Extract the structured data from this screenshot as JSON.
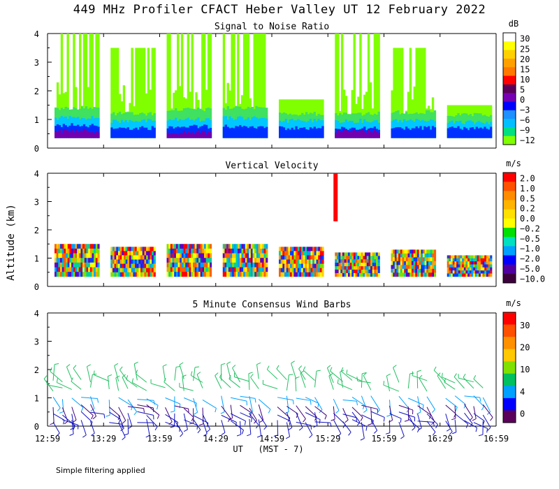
{
  "title": "449 MHz Profiler CFACT Heber Valley UT 12 February 2022",
  "footer_note": "Simple filtering applied",
  "y_axis_label": "Altitude (km)",
  "x_axis_label": "UT   (MST - 7)",
  "chart_data": [
    {
      "type": "heatmap",
      "title": "Signal to Noise Ratio",
      "xlabel": "UT   (MST - 7)",
      "ylabel": "Altitude (km)",
      "xlim": [
        "12:59",
        "16:59"
      ],
      "ylim": [
        0,
        4
      ],
      "x_ticks": [
        "12:59",
        "13:29",
        "13:59",
        "14:29",
        "14:59",
        "15:29",
        "15:59",
        "16:29",
        "16:59"
      ],
      "y_ticks": [
        "0",
        "1",
        "2",
        "3",
        "4"
      ],
      "colorbar": {
        "unit": "dB",
        "labels": [
          "30",
          "25",
          "20",
          "15",
          "10",
          "5",
          "0",
          "−3",
          "−6",
          "−9",
          "−12"
        ],
        "colors": [
          "#ffffff",
          "#ffff00",
          "#ffd000",
          "#ffa000",
          "#ff7800",
          "#ff0000",
          "#5a005a",
          "#7800b4",
          "#0000ff",
          "#1e90ff",
          "#00bfff",
          "#00e080",
          "#80ff00"
        ]
      },
      "scans": [
        {
          "start": "12:59",
          "end": "13:23",
          "layers": [
            {
              "top_km": 4.0,
              "class": "-12"
            },
            {
              "top_km": 1.4,
              "class": "-9"
            },
            {
              "top_km": 1.05,
              "class": "-6"
            },
            {
              "top_km": 0.8,
              "class": "-3"
            },
            {
              "top_km": 0.6,
              "class": "0"
            }
          ]
        },
        {
          "start": "13:29",
          "end": "13:53",
          "layers": [
            {
              "top_km": 3.5,
              "class": "-12"
            },
            {
              "top_km": 1.2,
              "class": "-9"
            },
            {
              "top_km": 0.95,
              "class": "-6"
            },
            {
              "top_km": 0.7,
              "class": "-3"
            }
          ]
        },
        {
          "start": "13:59",
          "end": "14:23",
          "layers": [
            {
              "top_km": 4.0,
              "class": "-12"
            },
            {
              "top_km": 1.35,
              "class": "-9"
            },
            {
              "top_km": 1.0,
              "class": "-6"
            },
            {
              "top_km": 0.75,
              "class": "-3"
            },
            {
              "top_km": 0.55,
              "class": "0"
            }
          ]
        },
        {
          "start": "14:29",
          "end": "14:53",
          "layers": [
            {
              "top_km": 4.0,
              "class": "-12"
            },
            {
              "top_km": 1.4,
              "class": "-9"
            },
            {
              "top_km": 1.05,
              "class": "-6"
            },
            {
              "top_km": 0.75,
              "class": "-3"
            }
          ]
        },
        {
          "start": "14:59",
          "end": "15:23",
          "layers": [
            {
              "top_km": 1.7,
              "class": "-12"
            },
            {
              "top_km": 1.2,
              "class": "-9"
            },
            {
              "top_km": 0.95,
              "class": "-6"
            },
            {
              "top_km": 0.7,
              "class": "-3"
            }
          ]
        },
        {
          "start": "15:29",
          "end": "15:53",
          "layers": [
            {
              "top_km": 4.0,
              "class": "-12"
            },
            {
              "top_km": 1.2,
              "class": "-9"
            },
            {
              "top_km": 0.95,
              "class": "-6"
            },
            {
              "top_km": 0.7,
              "class": "-3"
            },
            {
              "top_km": 0.6,
              "class": "0"
            }
          ]
        },
        {
          "start": "15:59",
          "end": "16:23",
          "layers": [
            {
              "top_km": 3.5,
              "class": "-12"
            },
            {
              "top_km": 1.25,
              "class": "-9"
            },
            {
              "top_km": 0.95,
              "class": "-6"
            },
            {
              "top_km": 0.7,
              "class": "-3"
            }
          ]
        },
        {
          "start": "16:29",
          "end": "16:53",
          "layers": [
            {
              "top_km": 1.5,
              "class": "-12"
            },
            {
              "top_km": 1.15,
              "class": "-9"
            },
            {
              "top_km": 0.9,
              "class": "-6"
            },
            {
              "top_km": 0.7,
              "class": "-3"
            }
          ]
        }
      ]
    },
    {
      "type": "heatmap",
      "title": "Vertical Velocity",
      "xlabel": "UT   (MST - 7)",
      "ylabel": "Altitude (km)",
      "xlim": [
        "12:59",
        "16:59"
      ],
      "ylim": [
        0,
        4
      ],
      "x_ticks": [
        "12:59",
        "13:29",
        "13:59",
        "14:29",
        "14:59",
        "15:29",
        "15:59",
        "16:29",
        "16:59"
      ],
      "y_ticks": [
        "0",
        "1",
        "2",
        "3",
        "4"
      ],
      "colorbar": {
        "unit": "m/s",
        "labels": [
          "2.0",
          "1.0",
          "0.5",
          "0.2",
          "0.0",
          "−0.2",
          "−0.5",
          "−1.0",
          "−2.0",
          "−5.0",
          "−10.0"
        ],
        "colors": [
          "#ff0000",
          "#ff5000",
          "#ff8c00",
          "#ffb400",
          "#ffe000",
          "#ffff00",
          "#00e000",
          "#00e0c0",
          "#00a0ff",
          "#0000ff",
          "#5000a0",
          "#3c003c"
        ]
      },
      "scans": [
        {
          "start": "12:59",
          "end": "13:23",
          "top_km": 1.5
        },
        {
          "start": "13:29",
          "end": "13:53",
          "top_km": 1.4
        },
        {
          "start": "13:59",
          "end": "14:23",
          "top_km": 1.5
        },
        {
          "start": "14:29",
          "end": "14:53",
          "top_km": 1.5
        },
        {
          "start": "14:59",
          "end": "15:23",
          "top_km": 1.4
        },
        {
          "start": "15:29",
          "end": "15:53",
          "top_km": 1.2
        },
        {
          "start": "15:59",
          "end": "16:23",
          "top_km": 1.3
        },
        {
          "start": "16:29",
          "end": "16:53",
          "top_km": 1.1
        }
      ]
    },
    {
      "type": "scatter",
      "title": "5 Minute Consensus Wind Barbs",
      "xlabel": "UT   (MST - 7)",
      "ylabel": "Altitude (km)",
      "xlim": [
        "12:59",
        "16:59"
      ],
      "ylim": [
        0,
        4
      ],
      "x_ticks": [
        "12:59",
        "13:29",
        "13:59",
        "14:29",
        "14:59",
        "15:29",
        "15:59",
        "16:29",
        "16:59"
      ],
      "y_ticks": [
        "0",
        "1",
        "2",
        "3",
        "4"
      ],
      "colorbar": {
        "unit": "m/s",
        "labels": [
          "30",
          "20",
          "10",
          "4",
          "0"
        ],
        "colors": [
          "#ff0000",
          "#ff5000",
          "#ff9000",
          "#ffc800",
          "#80e000",
          "#00c060",
          "#00a0ff",
          "#0000ff",
          "#5a005a"
        ]
      },
      "barb_rows": [
        {
          "altitude_km": 1.6,
          "speed_class": "green"
        },
        {
          "altitude_km": 1.3,
          "speed_class": "green"
        },
        {
          "altitude_km": 1.0,
          "speed_class": "cyan"
        },
        {
          "altitude_km": 0.7,
          "speed_class": "purple"
        },
        {
          "altitude_km": 0.45,
          "speed_class": "blue"
        },
        {
          "altitude_km": 0.2,
          "speed_class": "blue"
        }
      ]
    }
  ]
}
